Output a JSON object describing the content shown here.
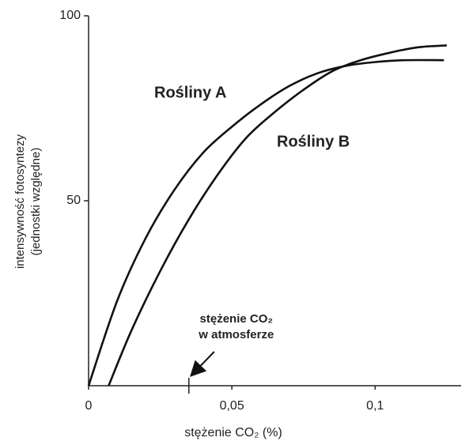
{
  "chart_data": {
    "type": "line",
    "xlabel": "stężenie CO₂ (%)",
    "ylabel": [
      "intensywność fotosyntezy",
      "(jednostki względne)"
    ],
    "xlim": [
      0,
      0.13
    ],
    "ylim": [
      0,
      100
    ],
    "xticks": [
      0,
      {
        "value": 0.05,
        "label": "0,05"
      },
      {
        "value": 0.1,
        "label": "0,1"
      }
    ],
    "yticks": [
      50,
      100
    ],
    "grid": false,
    "series": [
      {
        "name": "Rośliny A",
        "color": "#111111",
        "x": [
          0,
          0.01,
          0.02,
          0.03,
          0.04,
          0.05,
          0.06,
          0.07,
          0.08,
          0.09,
          0.1,
          0.11,
          0.124
        ],
        "values": [
          0,
          23,
          40,
          53,
          63,
          70,
          76,
          81,
          84.5,
          86.5,
          87.5,
          88,
          88
        ]
      },
      {
        "name": "Rośliny B",
        "color": "#111111",
        "x": [
          0.007,
          0.015,
          0.025,
          0.035,
          0.045,
          0.055,
          0.065,
          0.075,
          0.085,
          0.095,
          0.105,
          0.115,
          0.125
        ],
        "values": [
          0,
          15,
          31,
          45,
          57,
          67,
          74,
          80,
          85,
          88,
          90,
          91.5,
          92
        ]
      }
    ],
    "annotation": {
      "text": [
        "stężenie CO₂",
        "w atmosferze"
      ],
      "x": 0.035
    }
  }
}
